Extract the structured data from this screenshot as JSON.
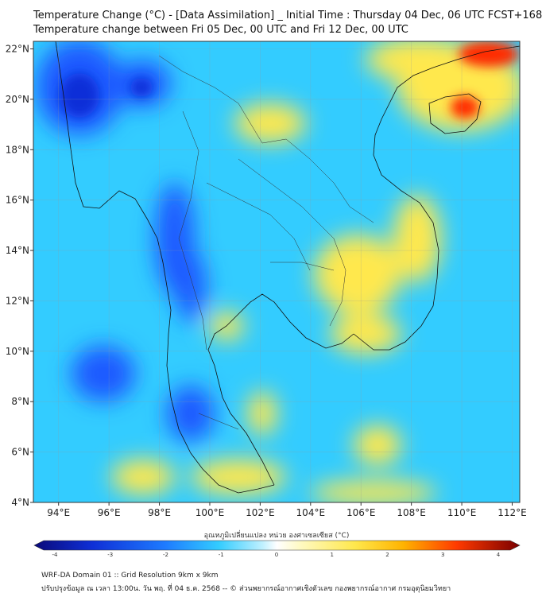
{
  "title": {
    "line1": "Temperature Change (°C) - [Data Assimilation] _ Initial Time : Thursday 04 Dec, 06 UTC FCST+168",
    "line2": "Temperature change between Fri 05 Dec, 00 UTC and Fri 12 Dec, 00 UTC"
  },
  "map": {
    "lon_ticks": [
      {
        "value": 94,
        "label": "94°E"
      },
      {
        "value": 96,
        "label": "96°E"
      },
      {
        "value": 98,
        "label": "98°E"
      },
      {
        "value": 100,
        "label": "100°E"
      },
      {
        "value": 102,
        "label": "102°E"
      },
      {
        "value": 104,
        "label": "104°E"
      },
      {
        "value": 106,
        "label": "106°E"
      },
      {
        "value": 108,
        "label": "108°E"
      },
      {
        "value": 110,
        "label": "110°E"
      },
      {
        "value": 112,
        "label": "112°E"
      }
    ],
    "lat_ticks": [
      {
        "value": 4,
        "label": "4°N"
      },
      {
        "value": 6,
        "label": "6°N"
      },
      {
        "value": 8,
        "label": "8°N"
      },
      {
        "value": 10,
        "label": "10°N"
      },
      {
        "value": 12,
        "label": "12°N"
      },
      {
        "value": 14,
        "label": "14°N"
      },
      {
        "value": 16,
        "label": "16°N"
      },
      {
        "value": 18,
        "label": "18°N"
      },
      {
        "value": 20,
        "label": "20°N"
      },
      {
        "value": 22,
        "label": "22°N"
      }
    ],
    "lon_range": [
      93,
      112.3
    ],
    "lat_range": [
      4,
      22.3
    ],
    "colors": {
      "base": "#33ccff",
      "warm": "#ffe84d",
      "hot": "#ff2a00",
      "cold": "#1e5aff",
      "deep_cold": "#0b2fd8"
    }
  },
  "colorbar": {
    "title": "อุณหภูมิเปลี่ยนแปลง หน่วย องศาเซลเซียส (°C)",
    "range": [
      -4,
      4
    ],
    "ticks": [
      "-4",
      "-3",
      "-2",
      "-1",
      "0",
      "1",
      "2",
      "3",
      "4"
    ]
  },
  "footer": {
    "line1": "WRF-DA Domain 01 :: Grid Resolution 9km x 9km",
    "line2": "ปรับปรุงข้อมูล ณ เวลา 13:00น. วัน พฤ. ที่ 04 ธ.ค. 2568 -- © ส่วนพยากรณ์อากาศเชิงตัวเลข กองพยากรณ์อากาศ กรมอุตุนิยมวิทยา"
  }
}
